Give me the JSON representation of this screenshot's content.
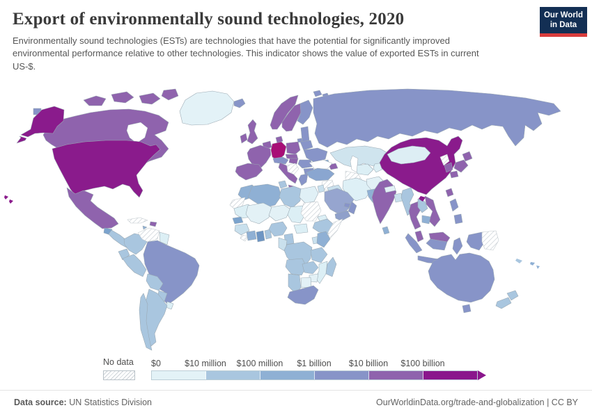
{
  "header": {
    "title": "Export of environmentally sound technologies, 2020",
    "subtitle": "Environmentally sound technologies (ESTs) are technologies that have the potential for significantly improved environmental performance relative to other technologies. This indicator shows the value of exported ESTs in current US-$.",
    "logo": {
      "line1": "Our World",
      "line2": "in Data",
      "bg_color": "#132f54",
      "accent_color": "#d93c3c"
    }
  },
  "legend": {
    "no_data_label": "No data"
  },
  "footer": {
    "source_label": "Data source:",
    "source_value": " UN Statistics Division",
    "credit": "OurWorldinData.org/trade-and-globalization | CC BY"
  },
  "chart_data": {
    "type": "choropleth",
    "title": "Export of environmentally sound technologies, 2020",
    "year": 2020,
    "unit": "current US-$",
    "legend_position": "bottom",
    "no_data": {
      "label": "No data",
      "style": "hatched"
    },
    "buckets": [
      {
        "label": "$0",
        "range": "$0 - $10 million",
        "color": "#e3f2f7"
      },
      {
        "label": "$10 million",
        "range": "$10 - $100 million",
        "color": "#a9c6df"
      },
      {
        "label": "$100 million",
        "range": "$100 million - $1 billion",
        "color": "#8fb0d4"
      },
      {
        "label": "$1 billion",
        "range": "$1 - $10 billion",
        "color": "#8794c8"
      },
      {
        "label": "$10 billion",
        "range": "$10 - $100 billion",
        "color": "#8f63ad"
      },
      {
        "label": "$100 billion",
        "range": "more than $100 billion",
        "color": "#8a168c"
      }
    ],
    "regions": {
      "greenland": {
        "name": "Greenland",
        "bucket": "$0 - $10 million",
        "color": "#e3f2f7"
      },
      "canada": {
        "name": "Canada",
        "bucket": "$10 - $100 billion",
        "color": "#8f63ad"
      },
      "alaska": {
        "name": "United States (Alaska)",
        "bucket": "more than $100 billion",
        "color": "#8a1b8c"
      },
      "usa": {
        "name": "United States",
        "bucket": "more than $100 billion",
        "color": "#8a1b8c"
      },
      "hawaii": {
        "name": "United States (Hawaii)",
        "bucket": "more than $100 billion",
        "color": "#8a1b8c"
      },
      "bering-island": {
        "name": "Russia (island)",
        "bucket": "$1 - $10 billion",
        "color": "#8794c8"
      },
      "mexico": {
        "name": "Mexico",
        "bucket": "$10 - $100 billion",
        "color": "#8f63ad"
      },
      "guatemala": {
        "name": "Guatemala",
        "bucket": "$100 million - $1 billion",
        "color": "#7ba3cd"
      },
      "c-america": {
        "name": "Central America",
        "bucket": "$10 - $100 million",
        "color": "#a9c6df"
      },
      "cuba": {
        "name": "Cuba",
        "bucket": "No data",
        "no_data": true
      },
      "hispaniola": {
        "name": "Dominican Republic",
        "bucket": "$10 - $100 billion",
        "color": "#8f63ad"
      },
      "jamaica": {
        "name": "Jamaica",
        "bucket": "$100 million - $1 billion",
        "color": "#8fb0d4"
      },
      "colombia": {
        "name": "Colombia",
        "bucket": "$10 - $100 million",
        "color": "#a9c6df"
      },
      "venezuela": {
        "name": "Venezuela",
        "bucket": "No data",
        "no_data": true
      },
      "guyanas": {
        "name": "Guyana / Suriname",
        "bucket": "$0 - $10 million",
        "color": "#dceff5"
      },
      "ecuador": {
        "name": "Ecuador",
        "bucket": "$10 - $100 million",
        "color": "#a9c6df"
      },
      "peru": {
        "name": "Peru",
        "bucket": "$10 - $100 million",
        "color": "#a9c6df"
      },
      "brazil": {
        "name": "Brazil",
        "bucket": "$1 - $10 billion",
        "color": "#8794c8"
      },
      "bolivia": {
        "name": "Bolivia",
        "bucket": "$10 - $100 million",
        "color": "#a9c6df"
      },
      "paraguay": {
        "name": "Paraguay",
        "bucket": "$10 - $100 million",
        "color": "#a9c6df"
      },
      "uruguay": {
        "name": "Uruguay",
        "bucket": "$0 - $10 million",
        "color": "#dceff5"
      },
      "argentina": {
        "name": "Argentina",
        "bucket": "$10 - $100 million",
        "color": "#a9c6df"
      },
      "chile": {
        "name": "Chile",
        "bucket": "$10 - $100 million",
        "color": "#a9c6df"
      },
      "iceland": {
        "name": "Iceland",
        "bucket": "$1 - $10 billion",
        "color": "#8794c8"
      },
      "svalbard": {
        "name": "Svalbard",
        "bucket": "$1 - $10 billion",
        "color": "#8794c8"
      },
      "uk": {
        "name": "United Kingdom",
        "bucket": "$10 - $100 billion",
        "color": "#8f63ad"
      },
      "ireland": {
        "name": "Ireland",
        "bucket": "$10 - $100 billion",
        "color": "#8f63ad"
      },
      "norway": {
        "name": "Norway",
        "bucket": "$10 - $100 billion",
        "color": "#8f63ad"
      },
      "sweden": {
        "name": "Sweden",
        "bucket": "$10 - $100 billion",
        "color": "#8f63ad"
      },
      "finland": {
        "name": "Finland",
        "bucket": "$1 - $10 billion",
        "color": "#8794c8"
      },
      "denmark": {
        "name": "Denmark",
        "bucket": "$10 - $100 billion",
        "color": "#8f63ad"
      },
      "baltics": {
        "name": "Baltic states",
        "bucket": "$1 - $10 billion",
        "color": "#8794c8"
      },
      "netherlands-belgium": {
        "name": "Netherlands / Belgium",
        "bucket": "$10 - $100 billion",
        "color": "#8f63ad"
      },
      "germany": {
        "name": "Germany",
        "bucket": "more than $100 billion",
        "color": "#a80e76"
      },
      "poland": {
        "name": "Poland",
        "bucket": "$10 - $100 billion",
        "color": "#8f63ad"
      },
      "czech-slovakia": {
        "name": "Czechia / Slovakia",
        "bucket": "$10 - $100 billion",
        "color": "#8f63ad"
      },
      "belarus": {
        "name": "Belarus",
        "bucket": "$1 - $10 billion",
        "color": "#8794c8"
      },
      "ukraine": {
        "name": "Ukraine",
        "bucket": "$1 - $10 billion",
        "color": "#8794c8"
      },
      "france": {
        "name": "France",
        "bucket": "$10 - $100 billion",
        "color": "#8f63ad"
      },
      "switzerland-austria": {
        "name": "Switzerland / Austria",
        "bucket": "$1 - $10 billion",
        "color": "#8794c8"
      },
      "hungary": {
        "name": "Hungary",
        "bucket": "$10 - $100 billion",
        "color": "#8f63ad"
      },
      "romania": {
        "name": "Romania",
        "bucket": "$1 - $10 billion",
        "color": "#8794c8"
      },
      "bulgaria": {
        "name": "Bulgaria",
        "bucket": "$1 - $10 billion",
        "color": "#8794c8"
      },
      "balkans": {
        "name": "Western Balkans",
        "bucket": "No data",
        "no_data": true
      },
      "greece": {
        "name": "Greece",
        "bucket": "$1 - $10 billion",
        "color": "#8794c8"
      },
      "spain": {
        "name": "Spain",
        "bucket": "$10 - $100 billion",
        "color": "#8f63ad"
      },
      "italy": {
        "name": "Italy",
        "bucket": "$10 - $100 billion",
        "color": "#8f63ad"
      },
      "russia": {
        "name": "Russia",
        "bucket": "$1 - $10 billion",
        "color": "#8794c8"
      },
      "kaliningrad": {
        "name": "Russia (Kaliningrad)",
        "bucket": "$1 - $10 billion",
        "color": "#8794c8"
      },
      "kazakhstan": {
        "name": "Kazakhstan",
        "bucket": "$10 - $100 million",
        "color": "#cfe4ee"
      },
      "uzbekistan": {
        "name": "Uzbekistan",
        "bucket": "$0 - $10 million",
        "color": "#dceff5"
      },
      "turkmenistan": {
        "name": "Turkmenistan",
        "bucket": "No data",
        "no_data": true
      },
      "kyrgyz-tajik": {
        "name": "Kyrgyzstan / Tajikistan",
        "bucket": "$0 - $10 million",
        "color": "#dceff5"
      },
      "georgia": {
        "name": "Georgia",
        "bucket": "$100 million - $1 billion",
        "color": "#8fb0d4"
      },
      "azerbaijan": {
        "name": "Azerbaijan",
        "bucket": "$10 - $100 billion",
        "color": "#8f63ad"
      },
      "turkey": {
        "name": "Turkey",
        "bucket": "$100 million - $1 billion",
        "color": "#8aa6d0"
      },
      "syria": {
        "name": "Syria",
        "bucket": "No data",
        "no_data": true
      },
      "iraq": {
        "name": "Iraq",
        "bucket": "$10 - $100 million",
        "color": "#c9e0ed"
      },
      "jordan-israel": {
        "name": "Jordan / Israel",
        "bucket": "$10 - $100 million",
        "color": "#c9e0ed"
      },
      "iran": {
        "name": "Iran",
        "bucket": "$0 - $10 million",
        "color": "#def0f6"
      },
      "afghanistan": {
        "name": "Afghanistan",
        "bucket": "$0 - $10 million",
        "color": "#e3f1f6"
      },
      "pakistan": {
        "name": "Pakistan",
        "bucket": "$100 million - $1 billion",
        "color": "#8fb0d4"
      },
      "saudi": {
        "name": "Saudi Arabia",
        "bucket": "$1 - $10 billion",
        "color": "#96a5cf"
      },
      "yemen": {
        "name": "Yemen",
        "bucket": "$1 - $10 billion",
        "color": "#8fa0ca"
      },
      "oman": {
        "name": "Oman",
        "bucket": "$1 - $10 billion",
        "color": "#8794c8"
      },
      "uae": {
        "name": "United Arab Emirates",
        "bucket": "$1 - $10 billion",
        "color": "#8794c8"
      },
      "egypt": {
        "name": "Egypt",
        "bucket": "$0 - $10 million",
        "color": "#e0f0f6"
      },
      "india": {
        "name": "India",
        "bucket": "$10 - $100 billion",
        "color": "#8f63ad"
      },
      "nepal": {
        "name": "Nepal",
        "bucket": "$0 - $10 million",
        "color": "#e3f1f6"
      },
      "bangladesh": {
        "name": "Bangladesh",
        "bucket": "$10 - $100 million",
        "color": "#c9e0ed"
      },
      "sri-lanka": {
        "name": "Sri Lanka",
        "bucket": "$100 million - $1 billion",
        "color": "#8fb0d4"
      },
      "myanmar": {
        "name": "Myanmar",
        "bucket": "$10 - $100 million",
        "color": "#a9c6df"
      },
      "thailand": {
        "name": "Thailand",
        "bucket": "$10 - $100 billion",
        "color": "#8f63ad"
      },
      "laos": {
        "name": "Laos",
        "bucket": "$10 - $100 million",
        "color": "#a9c6df"
      },
      "vietnam": {
        "name": "Vietnam",
        "bucket": "$10 - $100 billion",
        "color": "#8f63ad"
      },
      "cambodia": {
        "name": "Cambodia",
        "bucket": "$100 million - $1 billion",
        "color": "#8fb0d4"
      },
      "malaysia": {
        "name": "Malaysia",
        "bucket": "$10 - $100 billion",
        "color": "#8f63ad"
      },
      "indonesia": {
        "name": "Indonesia",
        "bucket": "$1 - $10 billion",
        "color": "#8794c8"
      },
      "png": {
        "name": "Papua New Guinea",
        "bucket": "No data",
        "no_data": true
      },
      "philippines": {
        "name": "Philippines",
        "bucket": "$1 - $10 billion",
        "color": "#8794c8"
      },
      "china": {
        "name": "China",
        "bucket": "more than $100 billion",
        "color": "#8a1b8c"
      },
      "mongolia": {
        "name": "Mongolia",
        "bucket": "$0 - $10 million",
        "color": "#ddeef4"
      },
      "north-korea": {
        "name": "North Korea",
        "bucket": "No data",
        "no_data": true
      },
      "south-korea": {
        "name": "South Korea",
        "bucket": "$10 - $100 billion",
        "color": "#8f63ad"
      },
      "japan": {
        "name": "Japan",
        "bucket": "$10 - $100 billion",
        "color": "#8f63ad"
      },
      "taiwan": {
        "name": "Taiwan",
        "bucket": "$10 - $100 billion",
        "color": "#8f63ad"
      },
      "morocco": {
        "name": "Morocco",
        "bucket": "$100 million - $1 billion",
        "color": "#8fb0d4"
      },
      "w-sahara": {
        "name": "Western Sahara",
        "bucket": "No data",
        "no_data": true
      },
      "algeria": {
        "name": "Algeria",
        "bucket": "$100 million - $1 billion",
        "color": "#8fb0d4"
      },
      "tunisia": {
        "name": "Tunisia",
        "bucket": "$10 - $100 million",
        "color": "#a9c6df"
      },
      "libya": {
        "name": "Libya",
        "bucket": "$10 - $100 million",
        "color": "#a9c6df"
      },
      "mauritania": {
        "name": "Mauritania",
        "bucket": "$0 - $10 million",
        "color": "#dceff5"
      },
      "mali": {
        "name": "Mali",
        "bucket": "$0 - $10 million",
        "color": "#e3f1f6"
      },
      "niger": {
        "name": "Niger",
        "bucket": "$0 - $10 million",
        "color": "#e3f1f6"
      },
      "chad": {
        "name": "Chad",
        "bucket": "$0 - $10 million",
        "color": "#dceff5"
      },
      "sudan": {
        "name": "Sudan",
        "bucket": "No data",
        "no_data": true
      },
      "eritrea": {
        "name": "Eritrea",
        "bucket": "$0 - $10 million",
        "color": "#dceff5"
      },
      "ethiopia": {
        "name": "Ethiopia",
        "bucket": "$10 - $100 million",
        "color": "#a9c6df"
      },
      "somalia": {
        "name": "Somalia",
        "bucket": "No data",
        "no_data": true
      },
      "senegal": {
        "name": "Senegal",
        "bucket": "$100 million - $1 billion",
        "color": "#7ba3cd"
      },
      "guinea-group": {
        "name": "Guinea region",
        "bucket": "$10 - $100 million",
        "color": "#c9e0ed"
      },
      "liberia": {
        "name": "Liberia",
        "bucket": "No data",
        "no_data": true
      },
      "cote-divoire": {
        "name": "Cote d'Ivoire",
        "bucket": "$100 million - $1 billion",
        "color": "#8fb0d4"
      },
      "ghana": {
        "name": "Ghana",
        "bucket": "$100 million - $1 billion",
        "color": "#6e95c3"
      },
      "togo-benin": {
        "name": "Togo / Benin",
        "bucket": "$10 - $100 million",
        "color": "#a9c6df"
      },
      "nigeria": {
        "name": "Nigeria",
        "bucket": "$10 - $100 million",
        "color": "#a9c6df"
      },
      "cameroon": {
        "name": "Cameroon",
        "bucket": "$10 - $100 million",
        "color": "#a9c6df"
      },
      "car": {
        "name": "Central African Republic",
        "bucket": "$0 - $10 million",
        "color": "#dceff5"
      },
      "congo-gabon": {
        "name": "Congo / Gabon",
        "bucket": "$10 - $100 million",
        "color": "#c9e0ed"
      },
      "drc": {
        "name": "Democratic Republic of Congo",
        "bucket": "$10 - $100 million",
        "color": "#a9c6df"
      },
      "uganda": {
        "name": "Uganda",
        "bucket": "$10 - $100 million",
        "color": "#c9e0ed"
      },
      "kenya": {
        "name": "Kenya",
        "bucket": "$100 million - $1 billion",
        "color": "#8fb0d4"
      },
      "tanzania": {
        "name": "Tanzania",
        "bucket": "$10 - $100 million",
        "color": "#a9c6df"
      },
      "angola": {
        "name": "Angola",
        "bucket": "$10 - $100 million",
        "color": "#a9c6df"
      },
      "zambia": {
        "name": "Zambia",
        "bucket": "$10 - $100 million",
        "color": "#a9c6df"
      },
      "mozambique": {
        "name": "Mozambique",
        "bucket": "$0 - $10 million",
        "color": "#dceff5"
      },
      "zimbabwe": {
        "name": "Zimbabwe",
        "bucket": "$0 - $10 million",
        "color": "#e3f1f6"
      },
      "botswana": {
        "name": "Botswana",
        "bucket": "$0 - $10 million",
        "color": "#e3f1f6"
      },
      "namibia": {
        "name": "Namibia",
        "bucket": "$10 - $100 million",
        "color": "#a9c6df"
      },
      "south-africa": {
        "name": "South Africa",
        "bucket": "$1 - $10 billion",
        "color": "#8794c8"
      },
      "madagascar": {
        "name": "Madagascar",
        "bucket": "$10 - $100 million",
        "color": "#a9c6df"
      },
      "australia": {
        "name": "Australia",
        "bucket": "$1 - $10 billion",
        "color": "#8794c8"
      },
      "new-zealand": {
        "name": "New Zealand",
        "bucket": "$10 - $100 million",
        "color": "#a9c6df"
      },
      "fiji": {
        "name": "Fiji",
        "bucket": "$100 million - $1 billion",
        "color": "#8fb0d4"
      },
      "new-caledonia": {
        "name": "New Caledonia",
        "bucket": "$10 - $100 million",
        "color": "#a9c6df"
      }
    }
  }
}
